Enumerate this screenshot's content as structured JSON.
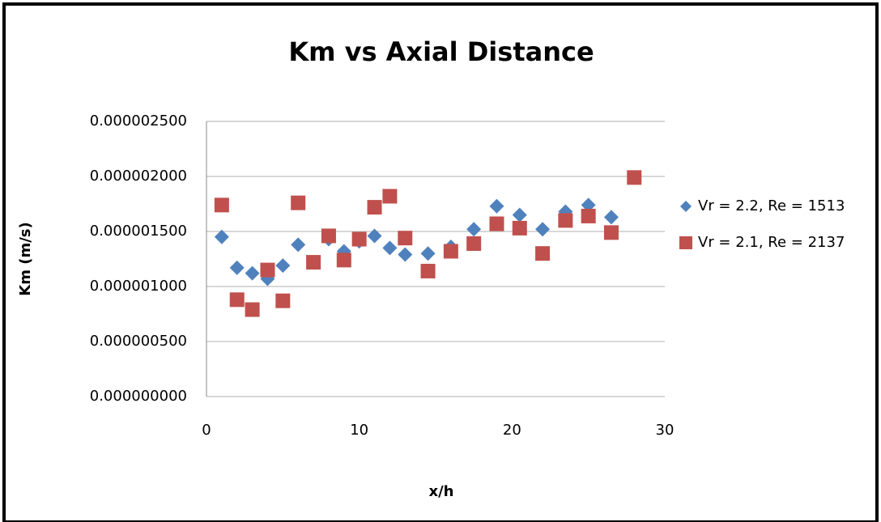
{
  "chart_data": {
    "type": "scatter",
    "title": "Km vs Axial Distance",
    "x_label": "x/h",
    "y_label": "Km (m/s)",
    "xlim": [
      0,
      30
    ],
    "xticks": [
      0,
      10,
      20,
      30
    ],
    "ylim": [
      0,
      2.5e-06
    ],
    "yticks": [
      {
        "value": 0,
        "label": "0.000000000"
      },
      {
        "value": 5e-07,
        "label": "0.000000500"
      },
      {
        "value": 1e-06,
        "label": "0.000001000"
      },
      {
        "value": 1.5e-06,
        "label": "0.000001500"
      },
      {
        "value": 2e-06,
        "label": "0.000002000"
      },
      {
        "value": 2.5e-06,
        "label": "0.000002500"
      }
    ],
    "grid": true,
    "legend": "right",
    "series": [
      {
        "name": "Vr = 2.2, Re = 1513",
        "color": "#4f81bd",
        "marker": "diamond",
        "x": [
          1,
          2,
          3,
          4,
          5,
          6,
          8,
          9,
          10,
          11,
          12,
          13,
          14.5,
          16,
          17.5,
          19,
          20.5,
          22,
          23.5,
          25,
          26.5
        ],
        "values": [
          1.45e-06,
          1.17e-06,
          1.12e-06,
          1.07e-06,
          1.19e-06,
          1.38e-06,
          1.43e-06,
          1.32e-06,
          1.41e-06,
          1.46e-06,
          1.35e-06,
          1.29e-06,
          1.3e-06,
          1.36e-06,
          1.52e-06,
          1.73e-06,
          1.65e-06,
          1.52e-06,
          1.68e-06,
          1.74e-06,
          1.63e-06
        ]
      },
      {
        "name": "Vr = 2.1, Re = 2137",
        "color": "#c0504d",
        "marker": "square",
        "x": [
          1,
          2,
          3,
          4,
          5,
          6,
          7,
          8,
          9,
          10,
          11,
          12,
          13,
          14.5,
          16,
          17.5,
          19,
          20.5,
          22,
          23.5,
          25,
          26.5,
          28
        ],
        "values": [
          1.74e-06,
          8.8e-07,
          7.9e-07,
          1.15e-06,
          8.7e-07,
          1.76e-06,
          1.22e-06,
          1.46e-06,
          1.24e-06,
          1.43e-06,
          1.72e-06,
          1.82e-06,
          1.44e-06,
          1.14e-06,
          1.32e-06,
          1.39e-06,
          1.57e-06,
          1.53e-06,
          1.3e-06,
          1.6e-06,
          1.64e-06,
          1.49e-06,
          1.99e-06
        ]
      }
    ]
  }
}
